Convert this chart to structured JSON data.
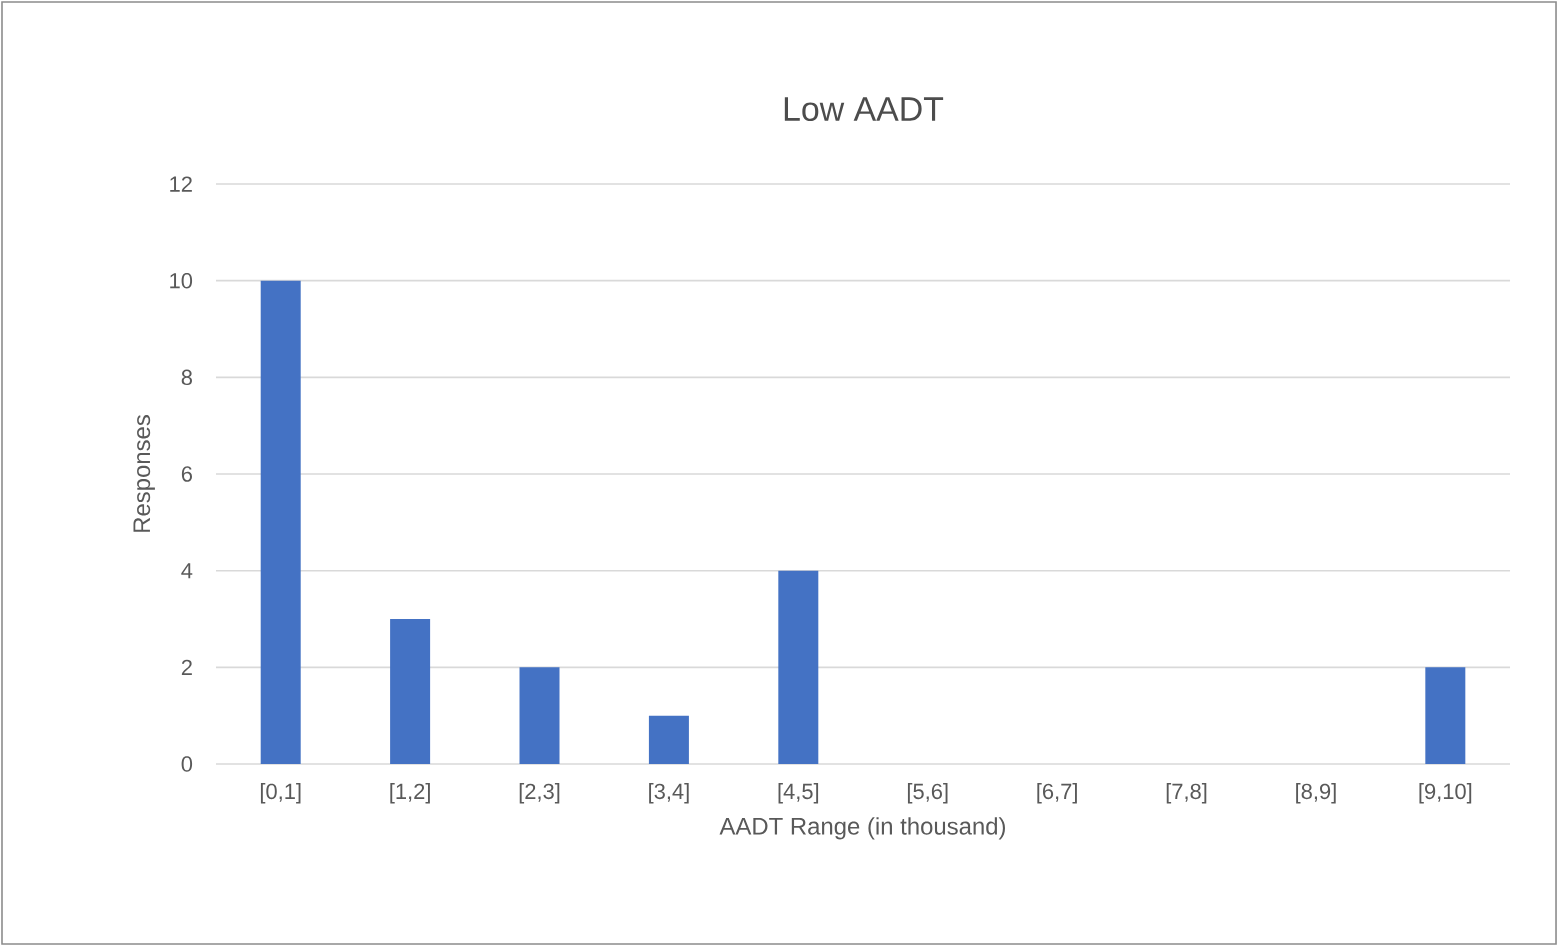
{
  "chart_data": {
    "type": "bar",
    "title": "Low AADT",
    "xlabel": "AADT Range (in thousand)",
    "ylabel": "Responses",
    "categories": [
      "[0,1]",
      "[1,2]",
      "[2,3]",
      "[3,4]",
      "[4,5]",
      "[5,6]",
      "[6,7]",
      "[7,8]",
      "[8,9]",
      "[9,10]"
    ],
    "values": [
      10,
      3,
      2,
      1,
      4,
      0,
      0,
      0,
      0,
      2
    ],
    "color": "#4472c4",
    "ylim": [
      0,
      12
    ],
    "yticks": [
      0,
      2,
      4,
      6,
      8,
      10,
      12
    ],
    "grid": "y"
  }
}
